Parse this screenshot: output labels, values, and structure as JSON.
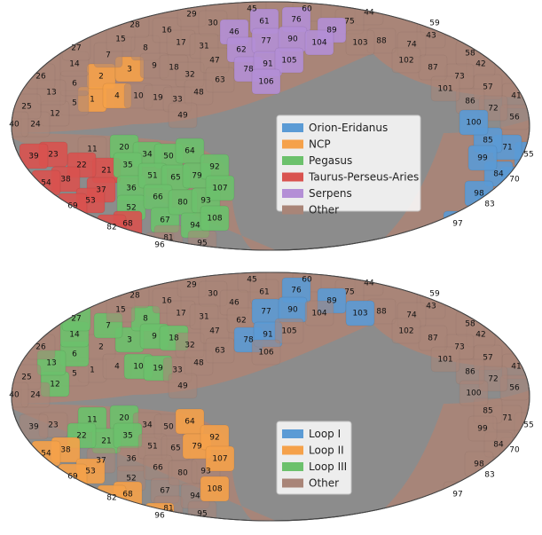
{
  "chart_data": [
    {
      "type": "heatmap",
      "projection": "mollweide",
      "legend_position": "center-right",
      "legend": [
        {
          "name": "Orion-Eridanus",
          "color": "#5b9bd5"
        },
        {
          "name": "NCP",
          "color": "#f5a14a"
        },
        {
          "name": "Pegasus",
          "color": "#6cc16c"
        },
        {
          "name": "Taurus-Perseus-Aries",
          "color": "#d9534f"
        },
        {
          "name": "Serpens",
          "color": "#b48fd6"
        },
        {
          "name": "Other",
          "color": "#a98578"
        }
      ],
      "regions": {
        "Orion-Eridanus": [
          "55",
          "71",
          "85",
          "99",
          "84",
          "70",
          "98",
          "83",
          "97",
          "100"
        ],
        "NCP": [
          "2",
          "3",
          "1",
          "4"
        ],
        "Pegasus": [
          "20",
          "34",
          "50",
          "64",
          "35",
          "51",
          "65",
          "36",
          "66",
          "80",
          "52",
          "67",
          "94",
          "79",
          "92",
          "107",
          "93",
          "108"
        ],
        "Taurus-Perseus-Aries": [
          "39",
          "23",
          "22",
          "38",
          "54",
          "37",
          "53",
          "69",
          "68",
          "82",
          "21"
        ],
        "Serpens": [
          "46",
          "61",
          "76",
          "89",
          "62",
          "77",
          "90",
          "104",
          "78",
          "91",
          "105",
          "106"
        ],
        "Other": []
      }
    },
    {
      "type": "heatmap",
      "projection": "mollweide",
      "legend_position": "center",
      "legend": [
        {
          "name": "Loop I",
          "color": "#5b9bd5"
        },
        {
          "name": "Loop II",
          "color": "#f5a14a"
        },
        {
          "name": "Loop III",
          "color": "#6cc16c"
        },
        {
          "name": "Other",
          "color": "#a98578"
        }
      ],
      "regions": {
        "Loop I": [
          "76",
          "89",
          "77",
          "90",
          "103",
          "78",
          "91"
        ],
        "Loop II": [
          "64",
          "79",
          "92",
          "107",
          "108",
          "38",
          "53",
          "69",
          "82",
          "96",
          "54",
          "68"
        ],
        "Loop III": [
          "27",
          "14",
          "7",
          "8",
          "6",
          "3",
          "9",
          "18",
          "13",
          "12",
          "10",
          "19",
          "11",
          "20",
          "35",
          "22",
          "21"
        ],
        "Other": []
      }
    }
  ]
}
